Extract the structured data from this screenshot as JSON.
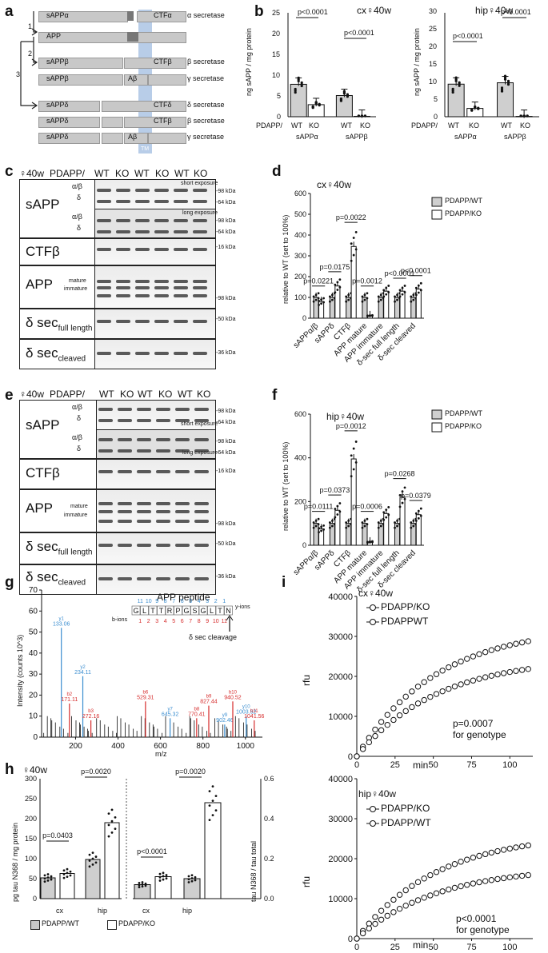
{
  "panel_labels": [
    "a",
    "b",
    "c",
    "d",
    "e",
    "f",
    "g",
    "h",
    "i"
  ],
  "panel_a": {
    "rows": [
      {
        "left": "sAPPα",
        "right": "CTFα",
        "enzyme": "α secretase"
      },
      {
        "left": "APP",
        "right": "",
        "enzyme": ""
      },
      {
        "left": "sAPPβ",
        "right": "CTFβ",
        "enzyme": "β secretase"
      },
      {
        "left": "sAPPβ",
        "right": "Aβ",
        "enzyme": "γ secretase"
      },
      {
        "left": "sAPPδ",
        "right": "CTFδ",
        "enzyme": "δ secretase"
      },
      {
        "left": "sAPPδ",
        "right": "CTFβ",
        "enzyme": "β secretase"
      },
      {
        "left": "sAPPδ",
        "right": "Aβ",
        "enzyme": "γ secretase"
      }
    ],
    "pathway_numbers": [
      "1",
      "2",
      "3"
    ],
    "tm_label": "TM"
  },
  "panel_b": {
    "left": {
      "title": "cx♀40w",
      "ylabel": "ng sAPP / mg protein",
      "yticks": [
        "0",
        "5",
        "10",
        "15",
        "20",
        "25"
      ],
      "pvals": [
        "p<0.0001",
        "p<0.0001"
      ],
      "genotypes": [
        "WT",
        "KO",
        "WT",
        "KO"
      ],
      "groups": [
        "sAPPα",
        "sAPPβ"
      ],
      "prefix": "PDAPP/",
      "means": [
        7.8,
        2.9,
        5.1,
        0.1
      ]
    },
    "right": {
      "title": "hip♀40w",
      "ylabel": "ng sAPP / mg protein",
      "yticks": [
        "0",
        "5",
        "10",
        "15",
        "20",
        "25",
        "30"
      ],
      "pvals": [
        "p<0.0001",
        "p<0.0001"
      ],
      "genotypes": [
        "WT",
        "KO",
        "WT",
        "KO"
      ],
      "groups": [
        "sAPPα",
        "sAPPβ"
      ],
      "prefix": "PDAPP/",
      "means": [
        9.4,
        2.4,
        9.8,
        0.1
      ]
    }
  },
  "panel_c": {
    "header": "♀40w",
    "prefix": "PDAPP/",
    "lanes": [
      "WT",
      "KO",
      "WT",
      "KO",
      "WT",
      "KO"
    ],
    "blots": [
      {
        "label": "sAPP",
        "marks": [
          "α/β",
          "δ",
          "α/β",
          "δ"
        ],
        "notes": [
          "short exposure",
          "long exposure"
        ],
        "kda": [
          "-98 kDa",
          "-64 kDa",
          "-98 kDa",
          "-64 kDa"
        ]
      },
      {
        "label": "CTFβ",
        "kda": [
          "-16 kDa"
        ]
      },
      {
        "label": "APP",
        "marks": [
          "mature",
          "immature"
        ],
        "kda": [
          "-98 kDa"
        ]
      },
      {
        "label": "δ sec",
        "sub": "full length",
        "kda": [
          "-50 kDa"
        ]
      },
      {
        "label": "δ sec",
        "sub": "cleaved",
        "kda": [
          "-36 kDa"
        ]
      }
    ]
  },
  "panel_d": {
    "title": "cx♀40w",
    "ylabel": "relative to WT (set to 100%)",
    "yticks": [
      "0",
      "100",
      "200",
      "300",
      "400",
      "500",
      "600"
    ],
    "legend": [
      "PDAPP/WT",
      "PDAPP/KO"
    ],
    "categories": [
      "sAPPα/β",
      "sAPPδ",
      "CTFβ",
      "APP mature",
      "APP immature",
      "δ-sec full length",
      "δ-sec cleaved"
    ],
    "pvals": [
      "p=0.0221",
      "p=0.0175",
      "p=0.0022",
      "p=0.0012",
      "p<0.0001",
      "p<0.0001"
    ]
  },
  "panel_e": {
    "header": "♀40w",
    "prefix": "PDAPP/",
    "lanes": [
      "WT",
      "KO",
      "WT",
      "KO",
      "WT",
      "KO"
    ],
    "blots": [
      {
        "label": "sAPP",
        "marks": [
          "α/β",
          "δ",
          "α/β",
          "δ"
        ],
        "notes": [
          "short exposure",
          "long exposure"
        ],
        "kda": [
          "-98 kDa",
          "-64 kDa",
          "-98 kDa",
          "-64 kDa"
        ]
      },
      {
        "label": "CTFβ",
        "kda": [
          "-16 kDa"
        ]
      },
      {
        "label": "APP",
        "marks": [
          "mature",
          "immature"
        ],
        "kda": [
          "-98 kDa"
        ]
      },
      {
        "label": "δ sec",
        "sub": "full length",
        "kda": [
          "-50 kDa"
        ]
      },
      {
        "label": "δ sec",
        "sub": "cleaved",
        "kda": [
          "-36 kDa"
        ]
      }
    ]
  },
  "panel_f": {
    "title": "hip♀40w",
    "ylabel": "relative to WT (set to 100%)",
    "yticks": [
      "0",
      "200",
      "400",
      "600"
    ],
    "legend": [
      "PDAPP/WT",
      "PDAPP/KO"
    ],
    "categories": [
      "sAPPα/β",
      "sAPPδ",
      "CTFβ",
      "APP mature",
      "APP immature",
      "δ-sec full length",
      "δ-sec cleaved"
    ],
    "pvals": [
      "p=0.0111",
      "p=0.0373",
      "p=0.0012",
      "p=0.0006",
      "p=0.0268",
      "p=0.0379"
    ]
  },
  "panel_g": {
    "ylabel": "Intensity (counts 10^3)",
    "xlabel": "m/z",
    "yticks": [
      "0",
      "10",
      "20",
      "30",
      "40",
      "50",
      "60",
      "70"
    ],
    "xticks": [
      "200",
      "400",
      "600",
      "800",
      "1000"
    ],
    "peptide_title": "APP peptide",
    "sequence": "GLTTRPGSGLTN",
    "y_numbers": [
      "11",
      "10",
      "9",
      "8",
      "7",
      "6",
      "5",
      "4",
      "3",
      "2",
      "1"
    ],
    "b_numbers": [
      "1",
      "2",
      "3",
      "4",
      "5",
      "6",
      "7",
      "8",
      "9",
      "10",
      "11"
    ],
    "b_label": "b-ions",
    "y_label": "y-ions",
    "cleavage": "δ sec cleavage",
    "peaks": [
      {
        "label": "y1",
        "mz": 133.06,
        "h": 52,
        "ion": "y"
      },
      {
        "label": "y2",
        "mz": 234.11,
        "h": 29,
        "ion": "y"
      },
      {
        "label": "b2",
        "mz": 171.11,
        "h": 16,
        "ion": "b"
      },
      {
        "label": "b3",
        "mz": 272.16,
        "h": 8,
        "ion": "b"
      },
      {
        "label": "b6",
        "mz": 529.31,
        "h": 17,
        "ion": "b"
      },
      {
        "label": "y7",
        "mz": 645.32,
        "h": 9,
        "ion": "y"
      },
      {
        "label": "b8",
        "mz": 770.41,
        "h": 9,
        "ion": "b"
      },
      {
        "label": "b9",
        "mz": 827.44,
        "h": 15,
        "ion": "b"
      },
      {
        "label": "y9",
        "mz": 902.46,
        "h": 6,
        "ion": "y"
      },
      {
        "label": "b10",
        "mz": 940.52,
        "h": 17,
        "ion": "b"
      },
      {
        "label": "y10",
        "mz": 1003.52,
        "h": 10,
        "ion": "y"
      },
      {
        "label": "b11",
        "mz": 1041.56,
        "h": 8,
        "ion": "b"
      }
    ]
  },
  "panel_h": {
    "title": "♀40w",
    "ylabel_left": "pg tau N368 / mg protein",
    "ylabel_right": "tau N368 / tau total",
    "yticks_left": [
      "0",
      "50",
      "100",
      "150",
      "200",
      "250",
      "300"
    ],
    "yticks_right": [
      "0.0",
      "0.2",
      "0.4",
      "0.6"
    ],
    "groups": [
      "cx",
      "hip",
      "cx",
      "hip"
    ],
    "pvals": [
      "p=0.0403",
      "p=0.0020",
      "p<0.0001",
      "p=0.0020"
    ],
    "legend": [
      "PDAPP/WT",
      "PDAPP/KO"
    ]
  },
  "panel_i": {
    "top": {
      "title": "cx♀40w",
      "ylabel": "rfu",
      "xlabel": "min",
      "legend": [
        "PDAPP/KO",
        "PDAPPWT"
      ],
      "yticks": [
        "0",
        "10000",
        "20000",
        "30000",
        "40000"
      ],
      "xticks": [
        "0",
        "25",
        "50",
        "75",
        "100"
      ],
      "stat": "p=0.0007",
      "stat2": "for genotype"
    },
    "bottom": {
      "title": "hip♀40w",
      "ylabel": "rfu",
      "xlabel": "min",
      "legend": [
        "PDAPP/KO",
        "PDAPP/WT"
      ],
      "yticks": [
        "0",
        "10000",
        "20000",
        "30000",
        "40000"
      ],
      "xticks": [
        "0",
        "25",
        "50",
        "75",
        "100"
      ],
      "stat": "p<0.0001",
      "stat2": "for genotype"
    }
  },
  "chart_data": [
    {
      "id": "b-cx",
      "type": "bar",
      "title": "cx♀40w",
      "ylabel": "ng sAPP / mg protein",
      "ylim": [
        0,
        25
      ],
      "categories": [
        "sAPPα WT",
        "sAPPα KO",
        "sAPPβ WT",
        "sAPPβ KO"
      ],
      "values": [
        7.8,
        2.9,
        5.1,
        0.1
      ]
    },
    {
      "id": "b-hip",
      "type": "bar",
      "title": "hip♀40w",
      "ylabel": "ng sAPP / mg protein",
      "ylim": [
        0,
        30
      ],
      "categories": [
        "sAPPα WT",
        "sAPPα KO",
        "sAPPβ WT",
        "sAPPβ KO"
      ],
      "values": [
        9.4,
        2.4,
        9.8,
        0.1
      ]
    },
    {
      "id": "d",
      "type": "bar",
      "title": "cx♀40w",
      "ylabel": "relative to WT (set to 100%)",
      "ylim": [
        0,
        600
      ],
      "categories": [
        "sAPPα/β",
        "sAPPδ",
        "CTFβ",
        "APP mature",
        "APP immature",
        "δ-sec full length",
        "δ-sec cleaved"
      ],
      "series": [
        {
          "name": "PDAPP/WT",
          "values": [
            100,
            100,
            100,
            100,
            100,
            100,
            100
          ]
        },
        {
          "name": "PDAPP/KO",
          "values": [
            80,
            155,
            345,
            12,
            130,
            130,
            140
          ]
        }
      ]
    },
    {
      "id": "f",
      "type": "bar",
      "title": "hip♀40w",
      "ylabel": "relative to WT (set to 100%)",
      "ylim": [
        0,
        600
      ],
      "categories": [
        "sAPPα/β",
        "sAPPδ",
        "CTFβ",
        "APP mature",
        "APP immature",
        "δ-sec full length",
        "δ-sec cleaved"
      ],
      "series": [
        {
          "name": "PDAPP/WT",
          "values": [
            100,
            100,
            100,
            100,
            100,
            100,
            100
          ]
        },
        {
          "name": "PDAPP/KO",
          "values": [
            75,
            160,
            395,
            15,
            145,
            220,
            140
          ]
        }
      ]
    },
    {
      "id": "h-left",
      "type": "bar",
      "ylabel": "pg tau N368 / mg protein",
      "ylim": [
        0,
        300
      ],
      "categories": [
        "cx WT",
        "cx KO",
        "hip WT",
        "hip KO"
      ],
      "values": [
        52,
        63,
        98,
        190
      ]
    },
    {
      "id": "h-right",
      "type": "bar",
      "ylabel": "tau N368 / tau total",
      "ylim": [
        0,
        0.6
      ],
      "categories": [
        "cx WT",
        "cx KO",
        "hip WT",
        "hip KO"
      ],
      "values": [
        0.07,
        0.11,
        0.1,
        0.48
      ]
    },
    {
      "id": "i-top",
      "type": "line",
      "title": "cx♀40w",
      "xlabel": "min",
      "ylabel": "rfu",
      "ylim": [
        0,
        40000
      ],
      "series": [
        {
          "name": "PDAPP/KO",
          "end": 29000
        },
        {
          "name": "PDAPPWT",
          "end": 22000
        }
      ]
    },
    {
      "id": "i-bottom",
      "type": "line",
      "title": "hip♀40w",
      "xlabel": "min",
      "ylabel": "rfu",
      "ylim": [
        0,
        40000
      ],
      "series": [
        {
          "name": "PDAPP/KO",
          "end": 23500
        },
        {
          "name": "PDAPP/WT",
          "end": 16000
        }
      ]
    }
  ]
}
